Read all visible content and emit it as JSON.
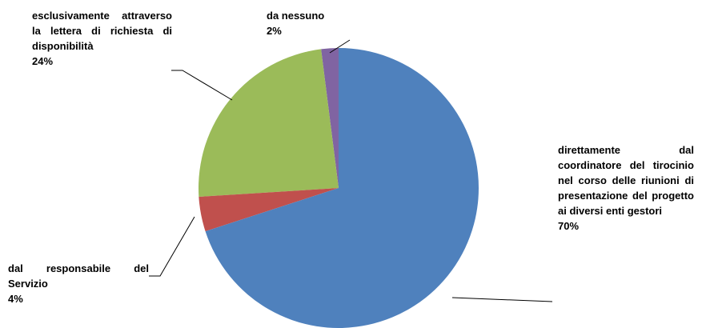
{
  "chart_data": {
    "type": "pie",
    "categories": [
      "direttamente dal coordinatore del tirocinio nel corso delle riunioni di presentazione del progetto ai diversi enti gestori",
      "dal responsabile del Servizio",
      "esclusivamente attraverso la lettera di richiesta di disponibilità",
      "da nessuno"
    ],
    "values": [
      70,
      4,
      24,
      2
    ],
    "value_labels": [
      "70%",
      "4%",
      "24%",
      "2%"
    ],
    "colors": [
      "#4f81bd",
      "#c0504d",
      "#9bbb59",
      "#8064a2"
    ]
  }
}
